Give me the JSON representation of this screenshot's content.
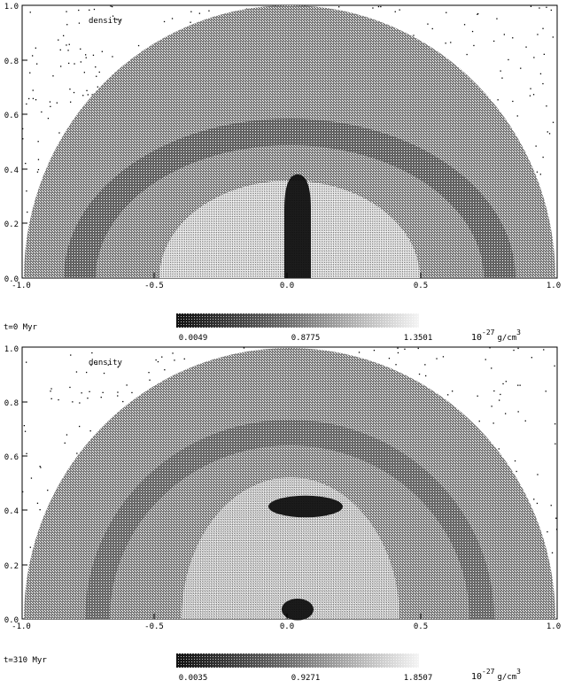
{
  "panels": [
    {
      "id": "top",
      "field_label": "density",
      "time_label": "t=0 Myr",
      "x_ticks": [
        "-1.0",
        "-0.5",
        "0.0",
        "0.5",
        "1.0"
      ],
      "y_ticks": [
        "0.0",
        "0.2",
        "0.4",
        "0.6",
        "0.8",
        "1.0"
      ],
      "colorbar": {
        "min": "0.0049",
        "mid": "0.8775",
        "max": "1.3501",
        "unit_base": "10",
        "unit_exp": "-27",
        "unit": "g/cm",
        "unit_pow": "3"
      },
      "blobs": [
        {
          "shape": "column",
          "cx": 0.03,
          "y0": 0.0,
          "y1": 0.38,
          "half_width": 0.05
        }
      ]
    },
    {
      "id": "bottom",
      "field_label": "density",
      "time_label": "t=310 Myr",
      "x_ticks": [
        "-1.0",
        "-0.5",
        "0.0",
        "0.5",
        "1.0"
      ],
      "y_ticks": [
        "0.0",
        "0.2",
        "0.4",
        "0.6",
        "0.8",
        "1.0"
      ],
      "colorbar": {
        "min": "0.0035",
        "mid": "0.9271",
        "max": "1.8507",
        "unit_base": "10",
        "unit_exp": "-27",
        "unit": "g/cm",
        "unit_pow": "3"
      },
      "blobs": [
        {
          "shape": "cap",
          "cx": 0.06,
          "cy": 0.415,
          "rx": 0.14,
          "ry": 0.04
        },
        {
          "shape": "knot",
          "cx": 0.03,
          "cy": 0.035,
          "rx": 0.06,
          "ry": 0.04
        }
      ]
    }
  ]
}
